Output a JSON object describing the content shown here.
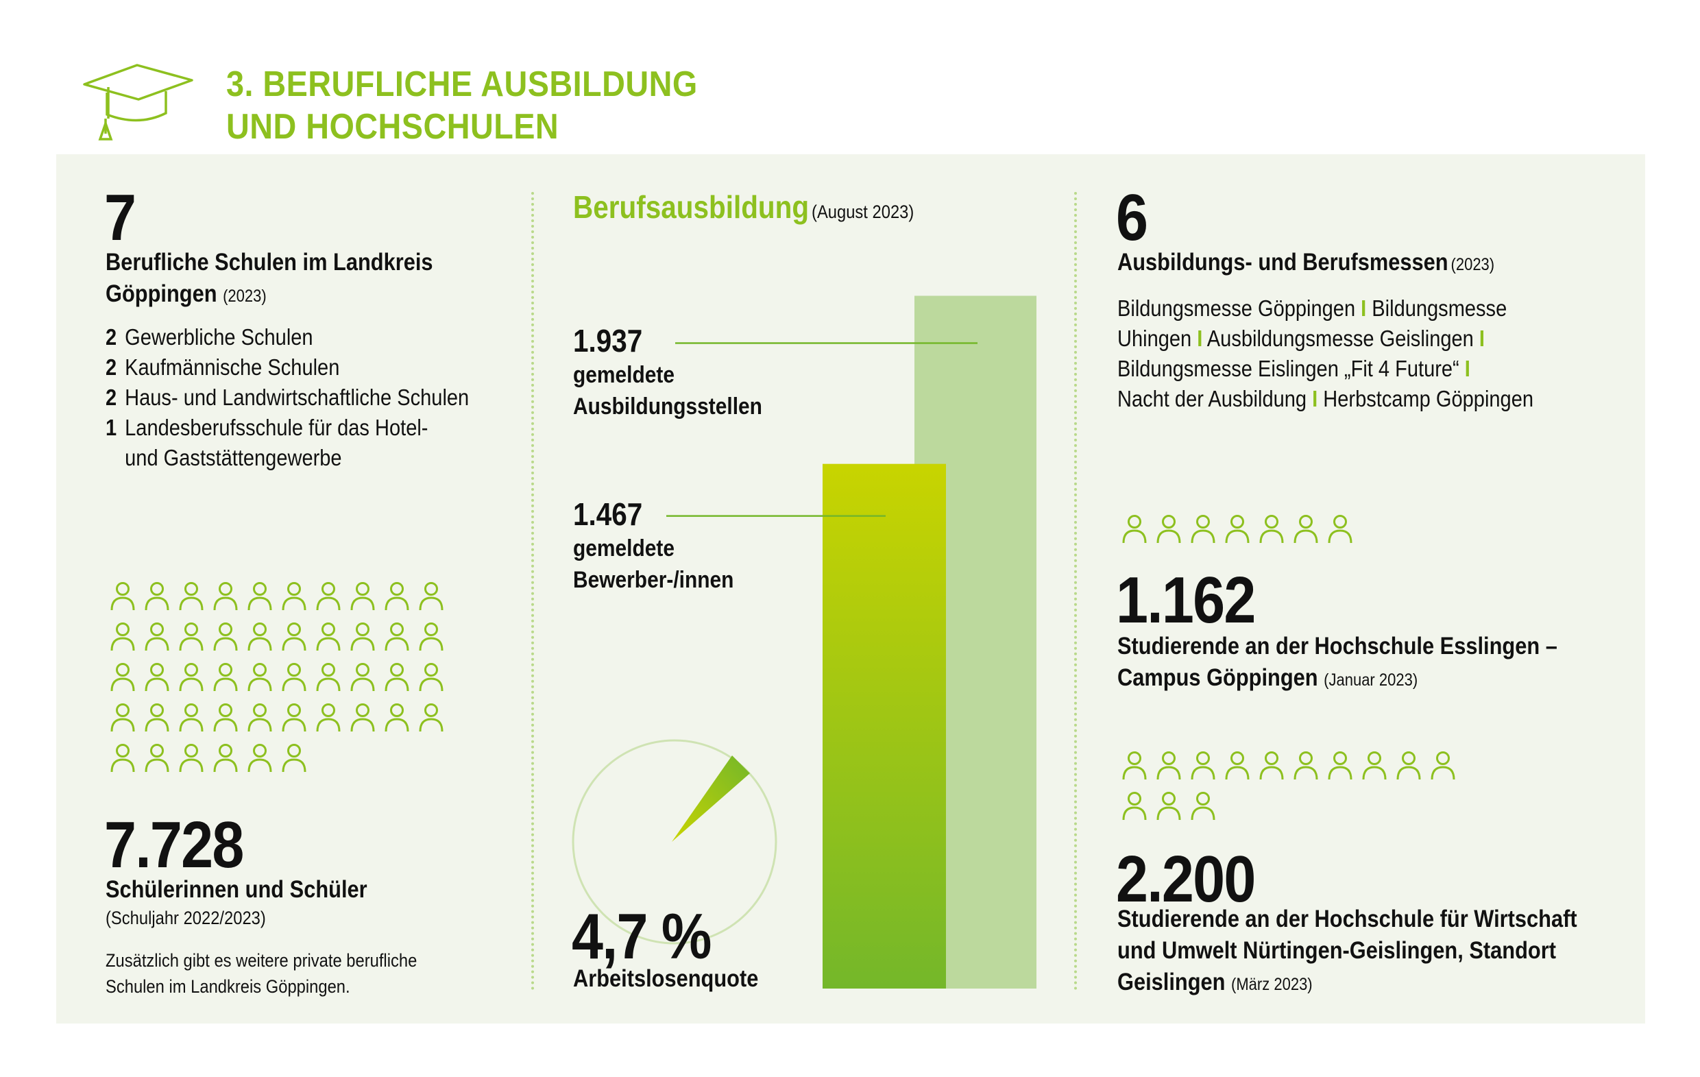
{
  "header": {
    "title_line1": "3. BERUFLICHE AUSBILDUNG",
    "title_line2": "UND HOCHSCHULEN",
    "icon": "graduation-cap-icon"
  },
  "colors": {
    "accent": "#8dc01f",
    "panel": "#f2f5ec",
    "bar_light": "#bcd99d",
    "bar_top": "#c8d400",
    "bar_bottom": "#74b72a"
  },
  "schools": {
    "count": "7",
    "heading_line1": "Berufliche Schulen im Landkreis",
    "heading_line2": "Göppingen",
    "year": "(2023)",
    "items": [
      {
        "num": "2",
        "label": "Gewerbliche Schulen"
      },
      {
        "num": "2",
        "label": "Kaufmännische Schulen"
      },
      {
        "num": "2",
        "label": "Haus- und Landwirtschaftliche Schulen"
      },
      {
        "num": "1",
        "label": "Landesberufsschule für das Hotel-",
        "label2": "und Gaststättengewerbe"
      }
    ]
  },
  "students": {
    "count": "7.728",
    "label": "Schülerinnen und Schüler",
    "period": "(Schuljahr 2022/2023)",
    "note_line1": "Zusätzlich gibt es weitere private berufliche",
    "note_line2": "Schulen im Landkreis Göppingen.",
    "icon": "person-icon"
  },
  "training": {
    "title": "Berufsausbildung",
    "date": "(August 2023)",
    "positions_value": "1.937",
    "positions_line1": "gemeldete",
    "positions_line2": "Ausbildungsstellen",
    "applicants_value": "1.467",
    "applicants_line1": "gemeldete",
    "applicants_line2": "Bewerber-/innen",
    "unemployment_value": "4,7 %",
    "unemployment_label": "Arbeitslosenquote"
  },
  "chart_data": {
    "type": "bar",
    "categories": [
      "gemeldete Ausbildungsstellen",
      "gemeldete Bewerber-/innen"
    ],
    "values": [
      1937,
      1467
    ],
    "gauge": {
      "value": 4.7,
      "unit": "%",
      "label": "Arbeitslosenquote"
    }
  },
  "fairs": {
    "count": "6",
    "heading": "Ausbildungs- und Berufsmessen",
    "year": "(2023)",
    "lines": [
      [
        "Bildungsmesse Göppingen",
        "Bildungsmesse"
      ],
      [
        "Uhingen",
        "Ausbildungsmesse Geislingen",
        ""
      ],
      [
        "Bildungsmesse Eislingen „Fit 4 Future“",
        ""
      ],
      [
        "Nacht der Ausbildung",
        "Herbstcamp Göppingen"
      ]
    ],
    "separator": "I"
  },
  "hs_esslingen": {
    "count": "1.162",
    "line1": "Studierende an der Hochschule Esslingen –",
    "line2": "Campus Göppingen",
    "date": "(Januar 2023)"
  },
  "hs_nuertingen": {
    "count": "2.200",
    "line1": "Studierende an der Hochschule für Wirtschaft",
    "line2": "und Umwelt Nürtingen-Geislingen, Standort",
    "line3": "Geislingen",
    "date": "(März 2023)"
  }
}
